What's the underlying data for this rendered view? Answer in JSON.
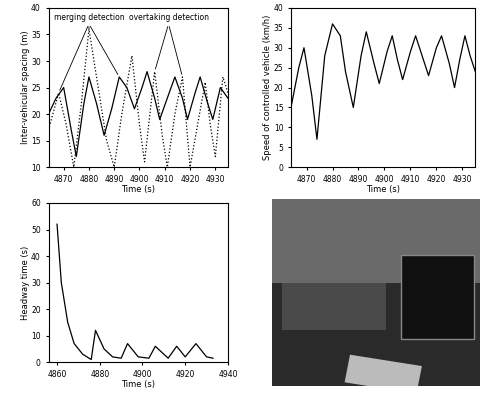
{
  "chart_data": [
    {
      "type": "line",
      "x_label": "Time (s)",
      "y_label": "Inter-vehicular spacing (m)",
      "xlim": [
        4864,
        4935
      ],
      "xticks": [
        4870,
        4880,
        4890,
        4900,
        4910,
        4920,
        4930
      ],
      "ylim": [
        10,
        40
      ],
      "yticks": [
        10,
        15,
        20,
        25,
        30,
        35,
        40
      ],
      "series": [
        {
          "color": "#000000",
          "line_style": "solid",
          "x": [
            4864,
            4867,
            4870,
            4873,
            4875,
            4878,
            4880,
            4883,
            4886,
            4889,
            4892,
            4895,
            4898,
            4901,
            4903,
            4906,
            4908,
            4911,
            4914,
            4917,
            4919,
            4922,
            4924,
            4927,
            4929,
            4932,
            4935
          ],
          "values": [
            20,
            23,
            25,
            17,
            12,
            22,
            27,
            22,
            16,
            21,
            27,
            25,
            21,
            25,
            28,
            23,
            19,
            23,
            27,
            23,
            19,
            24,
            27,
            22,
            19,
            25,
            23
          ]
        },
        {
          "color": "#000000",
          "line_style": "dotted",
          "x": [
            4864,
            4868,
            4871,
            4874,
            4877,
            4880,
            4884,
            4887,
            4890,
            4893,
            4897,
            4900,
            4902,
            4906,
            4909,
            4911,
            4914,
            4917,
            4920,
            4923,
            4926,
            4928,
            4930,
            4933,
            4935
          ],
          "values": [
            17,
            24,
            18,
            10,
            22,
            36,
            24,
            15,
            10,
            20,
            31,
            18,
            11,
            28,
            16,
            10,
            20,
            27,
            10,
            18,
            26,
            18,
            12,
            27,
            24
          ]
        }
      ],
      "annotations": [
        {
          "text": "merging detection",
          "points": [
            [
              4868,
              24
            ],
            [
              4880,
              36
            ],
            [
              4892,
              27
            ]
          ]
        },
        {
          "text": "overtaking detection",
          "points": [
            [
              4906,
              28
            ],
            [
              4917,
              27
            ]
          ]
        }
      ]
    },
    {
      "type": "line",
      "x_label": "Time (s)",
      "y_label": "Speed of controlled vehicle (km/h)",
      "xlim": [
        4864,
        4935
      ],
      "xticks": [
        4870,
        4880,
        4890,
        4900,
        4910,
        4920,
        4930
      ],
      "ylim": [
        0,
        40
      ],
      "yticks": [
        0,
        5,
        10,
        15,
        20,
        25,
        30,
        35,
        40
      ],
      "series": [
        {
          "color": "#000000",
          "line_style": "solid",
          "x": [
            4864,
            4867,
            4869,
            4872,
            4874,
            4877,
            4880,
            4883,
            4885,
            4888,
            4891,
            4893,
            4896,
            4898,
            4901,
            4903,
            4905,
            4907,
            4910,
            4912,
            4915,
            4917,
            4920,
            4922,
            4925,
            4927,
            4929,
            4931,
            4933,
            4935
          ],
          "values": [
            15,
            25,
            30,
            18,
            7,
            28,
            36,
            33,
            24,
            15,
            28,
            34,
            26,
            21,
            29,
            33,
            27,
            22,
            29,
            33,
            27,
            23,
            30,
            33,
            26,
            20,
            27,
            33,
            28,
            24
          ]
        }
      ]
    },
    {
      "type": "line",
      "x_label": "Time (s)",
      "y_label": "Headway time (s)",
      "xlim": [
        4856,
        4940
      ],
      "xticks": [
        4860,
        4880,
        4900,
        4920,
        4940
      ],
      "ylim": [
        0,
        60
      ],
      "yticks": [
        0,
        10,
        20,
        30,
        40,
        50,
        60
      ],
      "series": [
        {
          "color": "#000000",
          "line_style": "solid",
          "x": [
            4860,
            4862,
            4865,
            4868,
            4872,
            4876,
            4878,
            4882,
            4886,
            4890,
            4893,
            4898,
            4903,
            4906,
            4912,
            4916,
            4920,
            4925,
            4930,
            4933
          ],
          "values": [
            52,
            30,
            15,
            7,
            3,
            1,
            12,
            5,
            2,
            1.5,
            7,
            2,
            1.5,
            6,
            1.5,
            6,
            2,
            7,
            2,
            1.5
          ]
        }
      ]
    }
  ]
}
